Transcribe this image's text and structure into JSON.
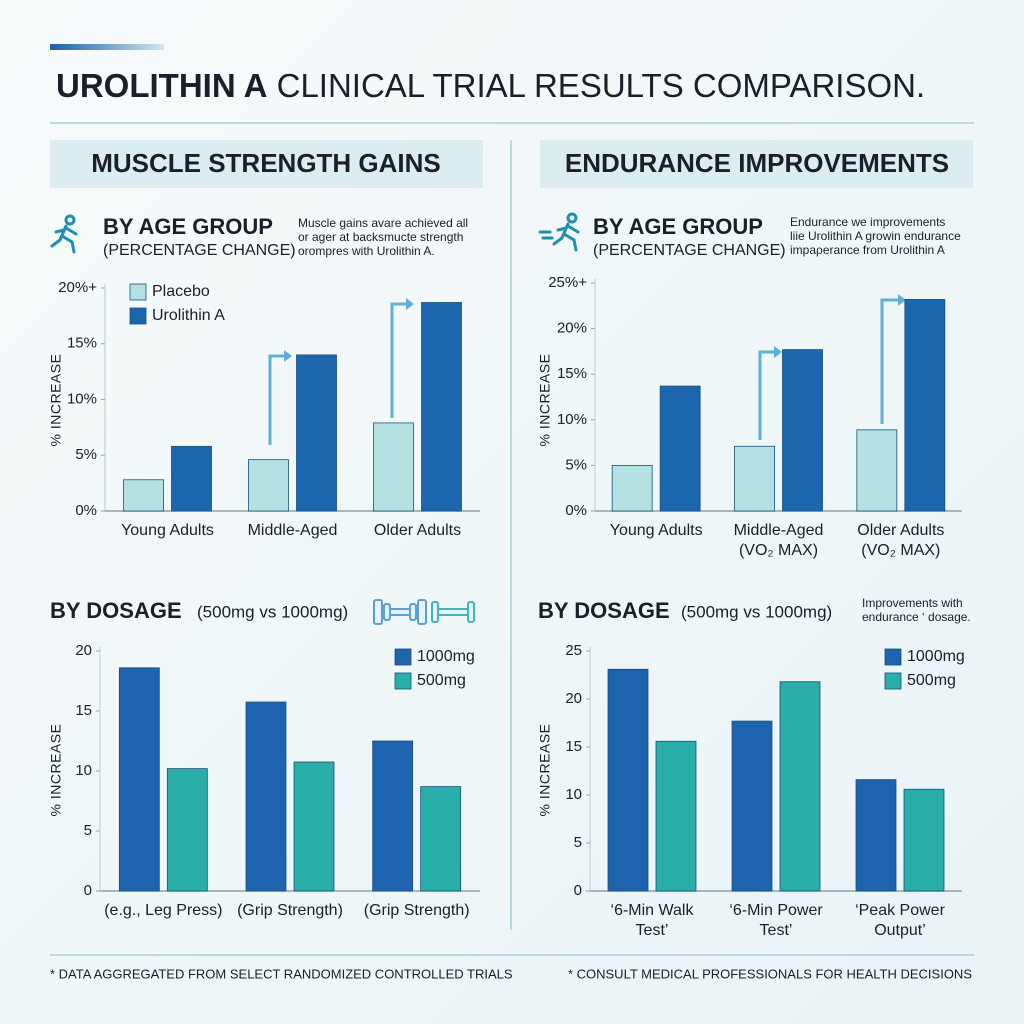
{
  "title": [
    "UROLITHIN A",
    "CLINICAL TRIAL RESULTS COMPARISON."
  ],
  "sections": [
    "MUSCLE STRENGTH GAINS",
    "ENDURANCE IMPROVEMENTS"
  ],
  "footnotes": [
    "* DATA AGGREGATED FROM SELECT RANDOMIZED CONTROLLED TRIALS",
    "* CONSULT MEDICAL PROFESSIONALS FOR HEALTH DECISIONS"
  ],
  "chart_data": [
    {
      "type": "bar",
      "subtitle": "BY AGE GROUP",
      "subtitle2": "(PERCENTAGE CHANGE)",
      "note": "Muscle gains avare achieved all\nor ager at backsmucte strength\norompres with Urolithin A.",
      "ylabel": "% INCREASE",
      "legend": "upper left",
      "grid": false,
      "categories": [
        "Young Adults",
        "Middle-Aged",
        "Older Adults"
      ],
      "series": [
        {
          "name": "Placebo",
          "color": "#b4e2e2",
          "values": [
            2.8,
            4.6,
            7.9
          ]
        },
        {
          "name": "Urolithin A",
          "color": "#1c66ad",
          "values": [
            5.8,
            14,
            18.7
          ]
        }
      ],
      "ylim": [
        0,
        20
      ],
      "yticks": [
        {
          "value": 0,
          "label": "0%"
        },
        {
          "value": 5,
          "label": "5%"
        },
        {
          "value": 10,
          "label": "10%"
        },
        {
          "value": 15,
          "label": "15%"
        },
        {
          "value": 20,
          "label": "20%+"
        }
      ]
    },
    {
      "type": "bar",
      "subtitle": "BY AGE GROUP",
      "subtitle2": "(PERCENTAGE CHANGE)",
      "note": "Endurance we improvements\nliie Urolithin A growin endurance\nimpaρerance from Urolithin A",
      "ylabel": "% INCREASE",
      "grid": false,
      "categories": [
        "Young Adults",
        "Middle-Aged\n(VO₂ MAX)",
        "Older Adults\n(VO₂ MAX)"
      ],
      "series": [
        {
          "color": "#b4e2e2",
          "values": [
            5.0,
            7.1,
            8.9
          ]
        },
        {
          "color": "#1c66ad",
          "values": [
            13.7,
            17.7,
            23.2
          ]
        }
      ],
      "ylim": [
        0,
        25
      ],
      "yticks": [
        {
          "value": 0,
          "label": "0%"
        },
        {
          "value": 5,
          "label": "5%"
        },
        {
          "value": 10,
          "label": "10%"
        },
        {
          "value": 15,
          "label": "15%"
        },
        {
          "value": 20,
          "label": "20%"
        },
        {
          "value": 25,
          "label": "25%+"
        }
      ]
    },
    {
      "type": "bar",
      "subtitle": "BY DOSAGE",
      "subtitle2": "(500mg vs 1000mg)",
      "ylabel": "% INCREASE",
      "legend": "upper right",
      "grid": false,
      "categories": [
        "(e.g., Leg Press)",
        "(Grip Strength)",
        "(Grip Strength)"
      ],
      "series": [
        {
          "name": "1000mg",
          "color": "#1d63ad",
          "values": [
            18.6,
            15.75,
            12.5
          ]
        },
        {
          "name": "500mg",
          "color": "#29aeaa",
          "values": [
            10.2,
            10.75,
            8.7
          ]
        }
      ],
      "ylim": [
        0,
        20
      ],
      "yticks": [
        0,
        5,
        10,
        15,
        20
      ]
    },
    {
      "type": "bar",
      "subtitle": "BY DOSAGE",
      "subtitle2": "(500mg vs 1000mg)",
      "note": "Improvements with\nendurance ‘ dosage.",
      "ylabel": "% INCREASE",
      "legend": "upper right",
      "grid": false,
      "categories": [
        "‘6-Min Walk\nTest’",
        "‘6-Min Power\nTest’",
        "‘Peak Power\nOutput’"
      ],
      "series": [
        {
          "name": "1000mg",
          "color": "#1d63ad",
          "values": [
            23.1,
            17.7,
            11.6
          ]
        },
        {
          "name": "500mg",
          "color": "#29aeaa",
          "values": [
            15.6,
            21.8,
            10.6
          ]
        }
      ],
      "ylim": [
        0,
        25
      ],
      "yticks": [
        0,
        5,
        10,
        15,
        20,
        25
      ]
    }
  ]
}
